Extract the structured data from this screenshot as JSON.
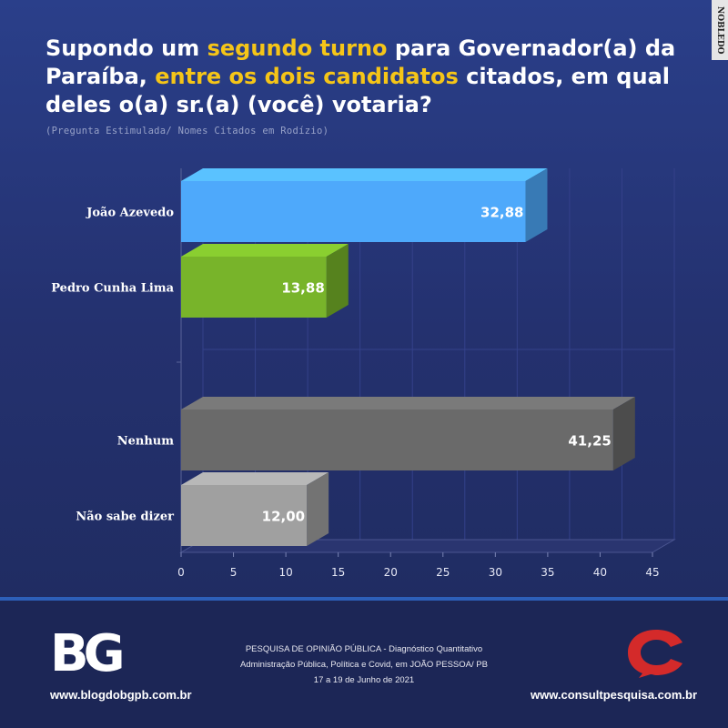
{
  "header": {
    "title_parts": [
      {
        "text": "Supondo um ",
        "highlight": false
      },
      {
        "text": "segundo turno",
        "highlight": true
      },
      {
        "text": " para Governador(a) da Paraíba, ",
        "highlight": false
      },
      {
        "text": "entre os dois candidatos",
        "highlight": true
      },
      {
        "text": " citados, em qual deles o(a) sr.(a) (você) votaria?",
        "highlight": false
      }
    ],
    "subtitle": "(Pregunta Estimulada/ Nomes Citados em Rodízio)",
    "highlight_color": "#f5c518"
  },
  "watermark": "NOBLEDO",
  "chart_data": {
    "type": "bar",
    "orientation": "horizontal",
    "style": "3d",
    "categories": [
      "João Azevedo",
      "Pedro Cunha Lima",
      "Nenhum",
      "Não sabe dizer"
    ],
    "values": [
      32.88,
      13.88,
      41.25,
      12.0
    ],
    "value_labels": [
      "32,88",
      "13,88",
      "41,25",
      "12,00"
    ],
    "colors": [
      "#4ea9fb",
      "#78b42a",
      "#6a6a6a",
      "#a0a0a0"
    ],
    "xlim": [
      0,
      45
    ],
    "xticks": [
      0,
      5,
      10,
      15,
      20,
      25,
      30,
      35,
      40,
      45
    ],
    "grid": true,
    "legend": "none"
  },
  "footer": {
    "left_logo": "BG",
    "left_site": "www.blogdobgpb.com.br",
    "center_lines": [
      "PESQUISA DE OPINIÃO PÚBLICA - Diagnóstico Quantitativo",
      "Administração Pública, Política e Covid, em JOÃO PESSOA/ PB",
      "17 a 19 de Junho de 2021"
    ],
    "right_logo_icon": "consult-speech-c-icon",
    "right_site": "www.consultpesquisa.com.br",
    "accent": "#d42a2a"
  }
}
